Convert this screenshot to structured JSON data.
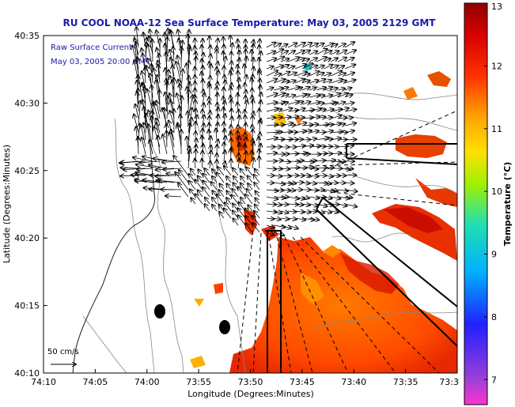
{
  "chart_data": {
    "type": "heatmap",
    "title": "RU COOL   NOAA-12  Sea Surface Temperature:  May 03, 2005 2129 GMT",
    "xlabel": "Longitude (Degrees:Minutes)",
    "ylabel": "Latitude (Degrees:Minutes)",
    "x_ticks": [
      "74:10",
      "74:05",
      "74:00",
      "73:55",
      "73:50",
      "73:45",
      "73:40",
      "73:35",
      "73:3"
    ],
    "y_ticks": [
      "40:35",
      "40:30",
      "40:25",
      "40:20",
      "40:15",
      "40:10"
    ],
    "colorbar": {
      "label": "Temperature (°C)",
      "ticks": [
        "13",
        "12",
        "11",
        "10",
        "9",
        "8",
        "7"
      ],
      "range": [
        6.6,
        13
      ]
    },
    "annotations": {
      "current_line1": "Raw Surface Current:",
      "current_line2": "May 03, 2005 20:00 GMT",
      "scale_label": "50 cm/s"
    },
    "colors": {
      "title": "#1a1aa8",
      "land_contour": "#888888",
      "warm_sst": "#ff6a00",
      "cool_sst": "#20c0d0"
    }
  }
}
